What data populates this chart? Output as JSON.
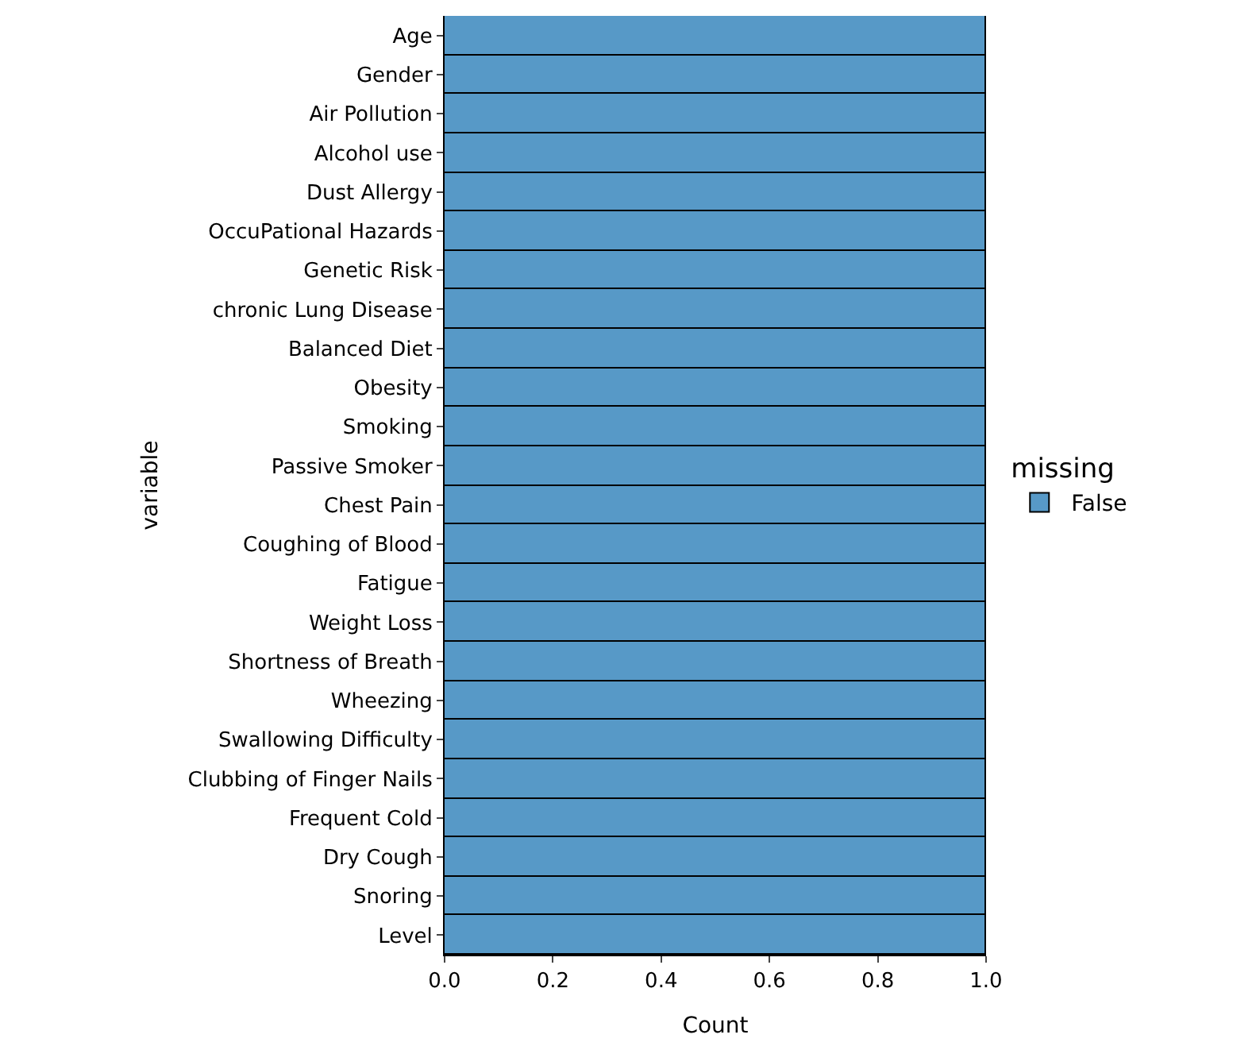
{
  "chart_data": {
    "type": "bar",
    "orientation": "horizontal",
    "xlabel": "Count",
    "ylabel": "variable",
    "legend_title": "missing",
    "legend": "right",
    "categories": [
      "Age",
      "Gender",
      "Air Pollution",
      "Alcohol use",
      "Dust Allergy",
      "OccuPational Hazards",
      "Genetic Risk",
      "chronic Lung Disease",
      "Balanced Diet",
      "Obesity",
      "Smoking",
      "Passive Smoker",
      "Chest Pain",
      "Coughing of Blood",
      "Fatigue",
      "Weight Loss",
      "Shortness of Breath",
      "Wheezing",
      "Swallowing Difficulty",
      "Clubbing of Finger Nails",
      "Frequent Cold",
      "Dry Cough",
      "Snoring",
      "Level"
    ],
    "series": [
      {
        "name": "False",
        "color": "#5799c7",
        "values": [
          1,
          1,
          1,
          1,
          1,
          1,
          1,
          1,
          1,
          1,
          1,
          1,
          1,
          1,
          1,
          1,
          1,
          1,
          1,
          1,
          1,
          1,
          1,
          1
        ]
      }
    ],
    "xlim": [
      0,
      1
    ],
    "xticks": [
      {
        "value": 0,
        "label": "0.0"
      },
      {
        "value": 0.2,
        "label": "0.2"
      },
      {
        "value": 0.4,
        "label": "0.4"
      },
      {
        "value": 0.6,
        "label": "0.6"
      },
      {
        "value": 0.8,
        "label": "0.8"
      },
      {
        "value": 1,
        "label": "1.0"
      }
    ]
  }
}
